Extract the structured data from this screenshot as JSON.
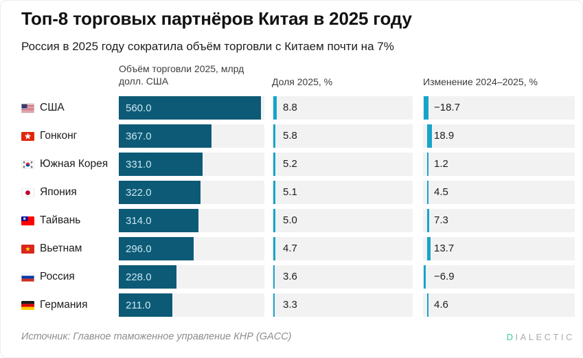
{
  "title": "Топ-8 торговых партнёров Китая в 2025 году",
  "subtitle": "Россия в 2025 году сократила объём торговли с Китаем почти на 7%",
  "columns": {
    "volume": "Объём торговли 2025, млрд долл. США",
    "share": "Доля 2025, %",
    "change": "Изменение 2024–2025, %"
  },
  "rows": [
    {
      "country": "США",
      "flag": "us",
      "volume": "560.0",
      "share": "8.8",
      "change": "−18.7",
      "volume_val": 560.0,
      "share_val": 8.8,
      "change_val": -18.7
    },
    {
      "country": "Гонконг",
      "flag": "hk",
      "volume": "367.0",
      "share": "5.8",
      "change": "18.9",
      "volume_val": 367.0,
      "share_val": 5.8,
      "change_val": 18.9
    },
    {
      "country": "Южная Корея",
      "flag": "kr",
      "volume": "331.0",
      "share": "5.2",
      "change": "1.2",
      "volume_val": 331.0,
      "share_val": 5.2,
      "change_val": 1.2
    },
    {
      "country": "Япония",
      "flag": "jp",
      "volume": "322.0",
      "share": "5.1",
      "change": "4.5",
      "volume_val": 322.0,
      "share_val": 5.1,
      "change_val": 4.5
    },
    {
      "country": "Тайвань",
      "flag": "tw",
      "volume": "314.0",
      "share": "5.0",
      "change": "7.3",
      "volume_val": 314.0,
      "share_val": 5.0,
      "change_val": 7.3
    },
    {
      "country": "Вьетнам",
      "flag": "vn",
      "volume": "296.0",
      "share": "4.7",
      "change": "13.7",
      "volume_val": 296.0,
      "share_val": 4.7,
      "change_val": 13.7
    },
    {
      "country": "Россия",
      "flag": "ru",
      "volume": "228.0",
      "share": "3.6",
      "change": "−6.9",
      "volume_val": 228.0,
      "share_val": 3.6,
      "change_val": -6.9
    },
    {
      "country": "Германия",
      "flag": "de",
      "volume": "211.0",
      "share": "3.3",
      "change": "4.6",
      "volume_val": 211.0,
      "share_val": 3.3,
      "change_val": 4.6
    }
  ],
  "chart_data": {
    "type": "bar",
    "orientation": "horizontal",
    "title": "Топ-8 торговых партнёров Китая в 2025 году",
    "subtitle": "Россия в 2025 году сократила объём торговли с Китаем почти на 7%",
    "categories": [
      "США",
      "Гонконг",
      "Южная Корея",
      "Япония",
      "Тайвань",
      "Вьетнам",
      "Россия",
      "Германия"
    ],
    "series": [
      {
        "name": "Объём торговли 2025, млрд долл. США",
        "values": [
          560.0,
          367.0,
          331.0,
          322.0,
          314.0,
          296.0,
          228.0,
          211.0
        ]
      },
      {
        "name": "Доля 2025, %",
        "values": [
          8.8,
          5.8,
          5.2,
          5.1,
          5.0,
          4.7,
          3.6,
          3.3
        ]
      },
      {
        "name": "Изменение 2024–2025, %",
        "values": [
          -18.7,
          18.9,
          1.2,
          4.5,
          7.3,
          13.7,
          -6.9,
          4.6
        ]
      }
    ],
    "xlim": [
      0,
      560
    ],
    "grid": false,
    "legend": false,
    "source": "Источник: Главное таможенное управление КНР (GACC)"
  },
  "source": "Источник: Главное таможенное управление КНР (GACC)",
  "logo": {
    "first_letter": "D",
    "rest": "IALECTIC"
  },
  "colors": {
    "bar": "#0D5A76",
    "tick": "#17A4C9",
    "cell_bg": "#F2F2F3",
    "bar_value_text": "#C9E8F2",
    "logo_d": "#3BCE90",
    "logo_rest": "#A6ABB0"
  }
}
